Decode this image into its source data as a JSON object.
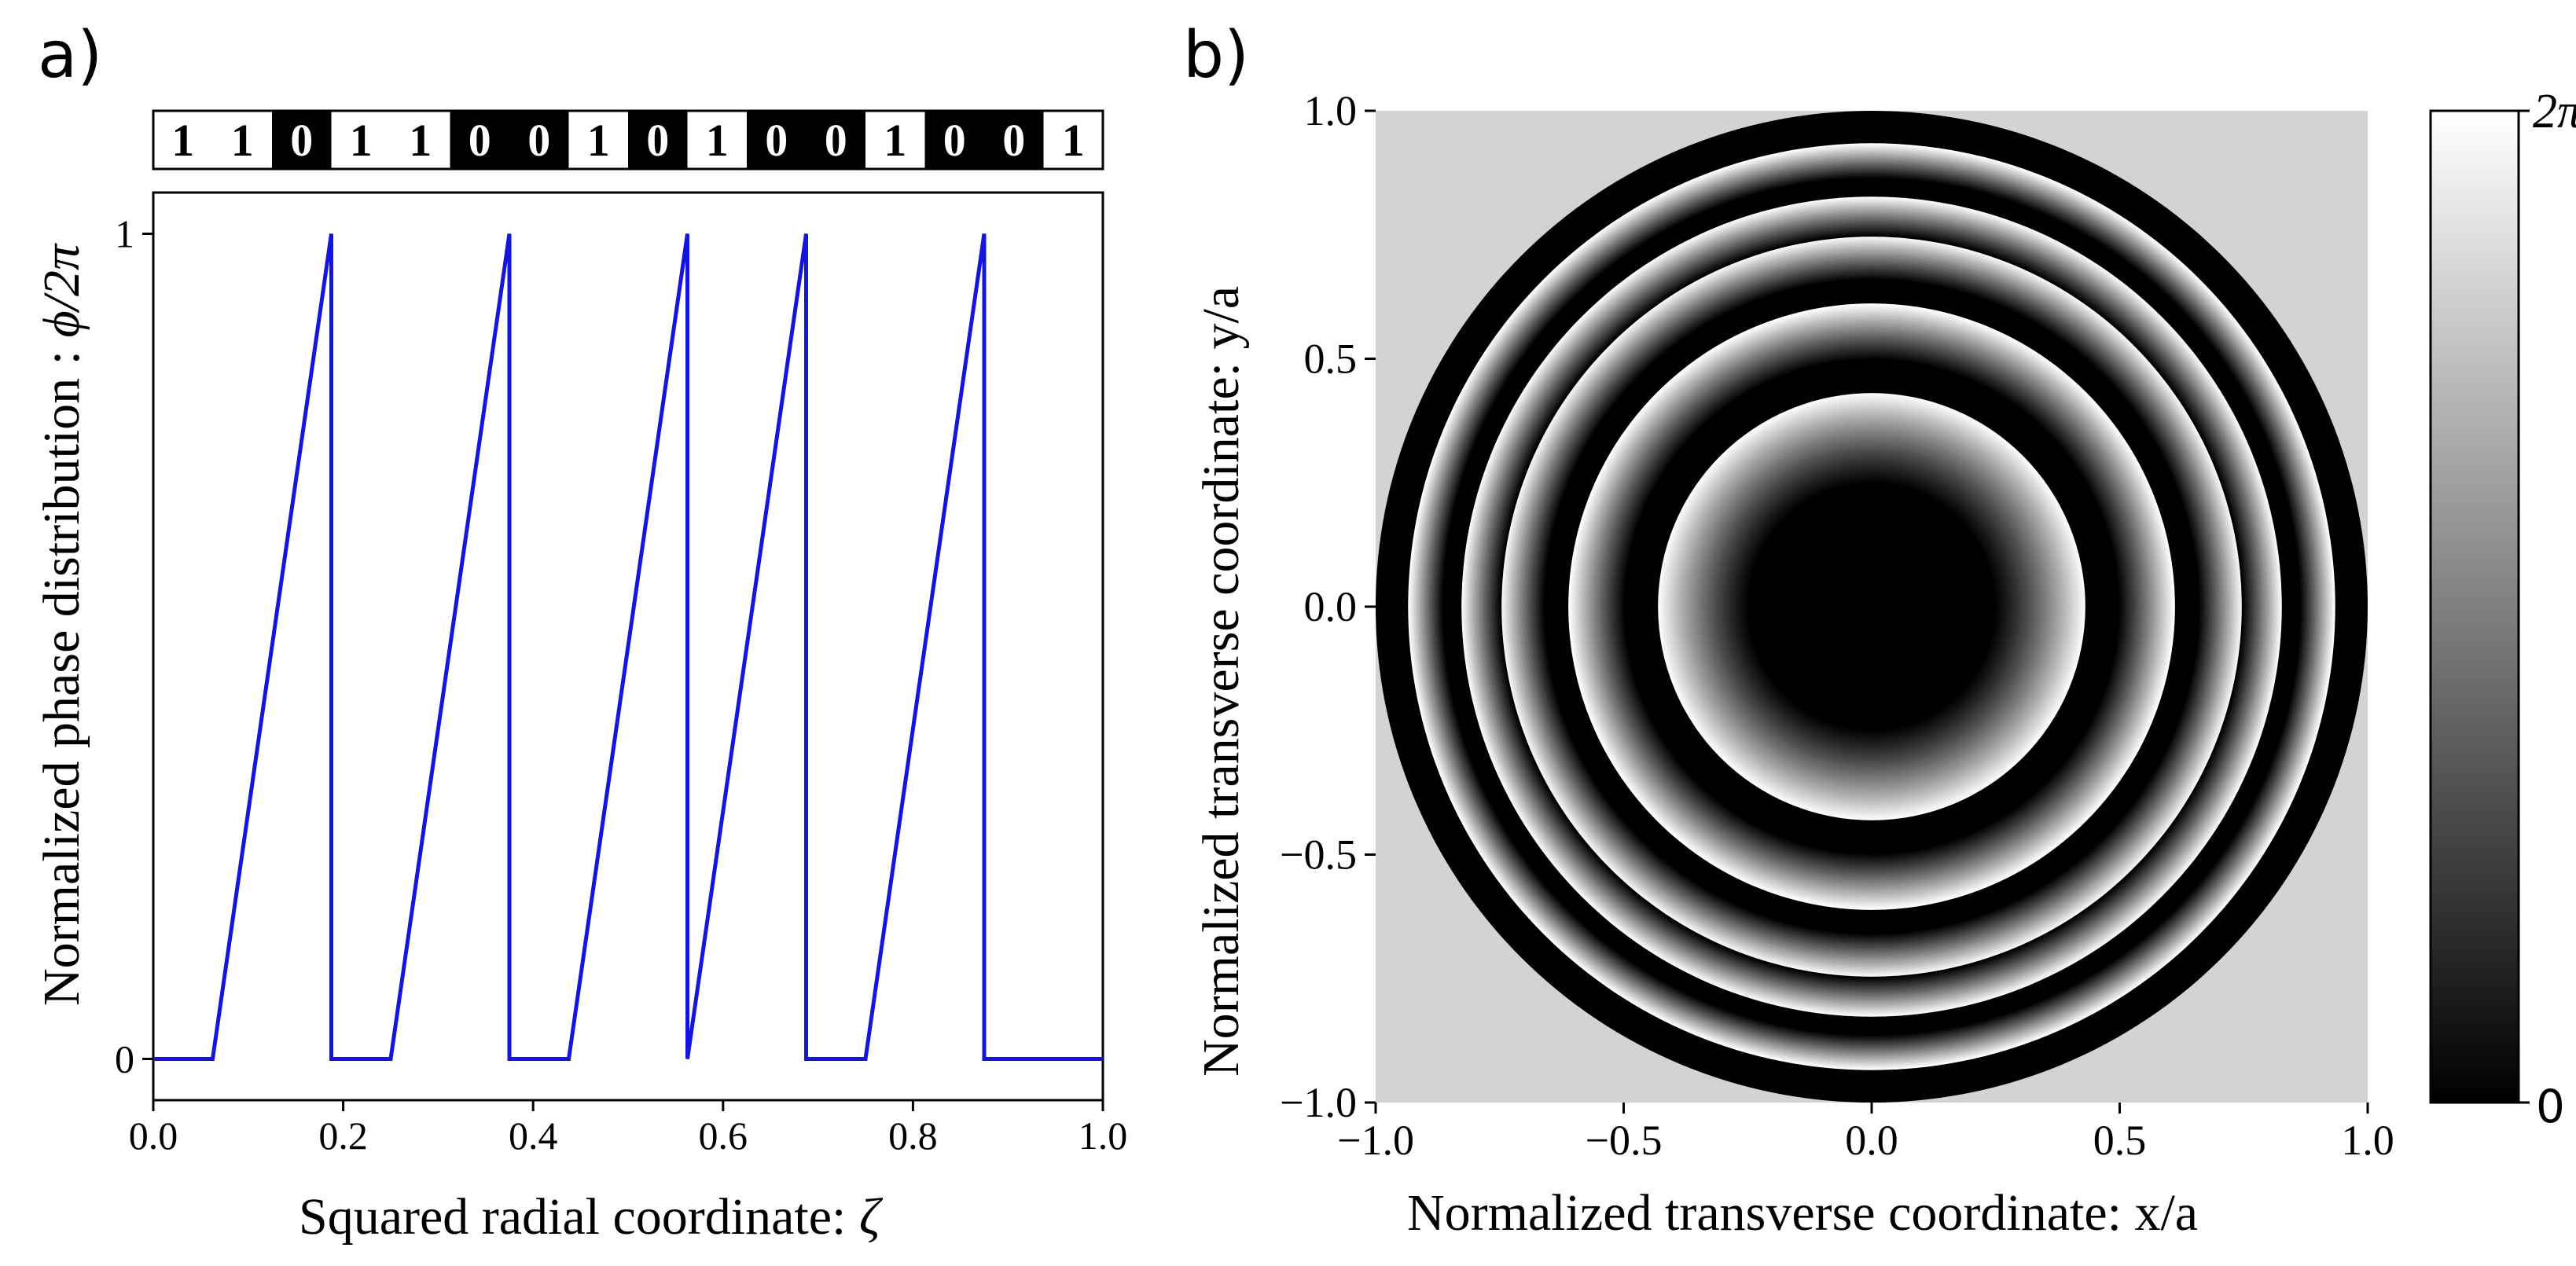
{
  "chart_data": [
    {
      "panel": "a)",
      "type": "line",
      "xlabel": "Squared radial coordinate: ",
      "xlabel_symbol": "ζ",
      "ylabel": "Normalized phase distribution : ",
      "ylabel_symbol": "ϕ/2π",
      "xlim": [
        0,
        1
      ],
      "ylim": [
        0,
        1
      ],
      "xticks": [
        "0.0",
        "0.2",
        "0.4",
        "0.6",
        "0.8",
        "1.0"
      ],
      "xtick_values": [
        0,
        0.2,
        0.4,
        0.6,
        0.8,
        1.0
      ],
      "yticks": [
        "0",
        "1"
      ],
      "ytick_values": [
        0,
        1
      ],
      "series": [
        {
          "name": "phase",
          "color": "#1515e0",
          "x": [
            0,
            0.0625,
            0.1875,
            0.1875,
            0.25,
            0.375,
            0.375,
            0.4375,
            0.5625,
            0.5625,
            0.6875,
            0.6875,
            0.75,
            0.875,
            0.875,
            1.0
          ],
          "y": [
            0,
            0,
            1,
            0,
            0,
            1,
            0,
            0,
            1,
            0,
            1,
            0,
            0,
            1,
            0,
            0
          ]
        }
      ],
      "code_bits": [
        "1",
        "1",
        "0",
        "1",
        "1",
        "0",
        "0",
        "1",
        "0",
        "1",
        "0",
        "0",
        "1",
        "0",
        "0",
        "1"
      ]
    },
    {
      "panel": "b)",
      "type": "heatmap",
      "xlabel": "Normalized transverse coordinate: x/a",
      "ylabel": "Normalized transverse coordinate: y/a",
      "xlim": [
        -1,
        1
      ],
      "ylim": [
        -1,
        1
      ],
      "xticks": [
        "−1.0",
        "−0.5",
        "0.0",
        "0.5",
        "1.0"
      ],
      "xtick_values": [
        -1.0,
        -0.5,
        0.0,
        0.5,
        1.0
      ],
      "yticks": [
        "1.0",
        "0.5",
        "0.0",
        "−0.5",
        "−1.0"
      ],
      "ytick_values": [
        1.0,
        0.5,
        0.0,
        -0.5,
        -1.0
      ],
      "background_color": "#d3d3d3",
      "aperture_radius": 1.0,
      "colorbar": {
        "min_label": "0",
        "max_label": "2π",
        "min_color": "#000000",
        "max_color": "#ffffff"
      },
      "ring_boundaries_zeta": [
        0.0625,
        0.1875,
        0.25,
        0.375,
        0.4375,
        0.5625,
        0.6875,
        0.75,
        0.875
      ]
    }
  ]
}
